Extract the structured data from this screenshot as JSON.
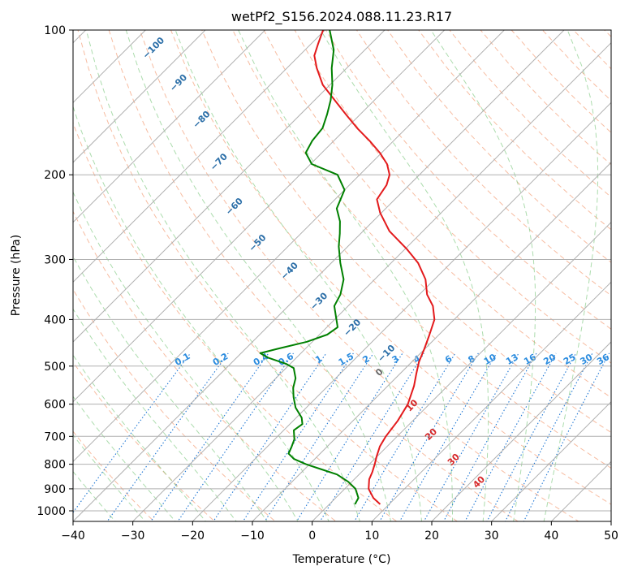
{
  "chart_data": {
    "type": "line",
    "title": "wetPf2_S156.2024.088.11.23.R17",
    "xlabel": "Temperature (°C)",
    "ylabel": "Pressure (hPa)",
    "xlim": [
      -40,
      50
    ],
    "ylim": [
      1050,
      100
    ],
    "y_scale": "log",
    "skew": "skew-T log-p diagram",
    "grid": true,
    "x_ticks": [
      "−40",
      "−30",
      "−20",
      "−10",
      "0",
      "10",
      "20",
      "30",
      "40",
      "50"
    ],
    "y_ticks": [
      "100",
      "200",
      "300",
      "400",
      "500",
      "600",
      "700",
      "800",
      "900",
      "1000"
    ],
    "series": [
      {
        "name": "",
        "color": "#e31a1c",
        "role": "temperature",
        "points": [
          [
            969,
            8.5
          ],
          [
            940,
            6.3
          ],
          [
            900,
            4.0
          ],
          [
            860,
            2.5
          ],
          [
            830,
            1.8
          ],
          [
            800,
            0.9
          ],
          [
            770,
            -0.1
          ],
          [
            735,
            -1.2
          ],
          [
            700,
            -1.9
          ],
          [
            650,
            -2.5
          ],
          [
            600,
            -3.6
          ],
          [
            550,
            -5.6
          ],
          [
            520,
            -7.2
          ],
          [
            490,
            -8.8
          ],
          [
            460,
            -10.1
          ],
          [
            430,
            -11.6
          ],
          [
            400,
            -13.3
          ],
          [
            375,
            -15.8
          ],
          [
            355,
            -18.7
          ],
          [
            330,
            -21.5
          ],
          [
            305,
            -25.5
          ],
          [
            285,
            -29.8
          ],
          [
            262,
            -35.6
          ],
          [
            240,
            -40.2
          ],
          [
            225,
            -43.0
          ],
          [
            210,
            -43.8
          ],
          [
            200,
            -45.0
          ],
          [
            190,
            -47.2
          ],
          [
            180,
            -50.3
          ],
          [
            170,
            -54.0
          ],
          [
            160,
            -58.2
          ],
          [
            150,
            -62.3
          ],
          [
            140,
            -66.6
          ],
          [
            130,
            -71.2
          ],
          [
            120,
            -75.0
          ],
          [
            113,
            -77.5
          ],
          [
            107,
            -78.8
          ],
          [
            100,
            -80.3
          ]
        ]
      },
      {
        "name": "",
        "color": "#008000",
        "role": "dewpoint",
        "points": [
          [
            969,
            4.3
          ],
          [
            940,
            3.8
          ],
          [
            900,
            1.8
          ],
          [
            870,
            -0.6
          ],
          [
            840,
            -3.7
          ],
          [
            820,
            -7.1
          ],
          [
            800,
            -10.6
          ],
          [
            780,
            -13.5
          ],
          [
            760,
            -15.3
          ],
          [
            740,
            -15.8
          ],
          [
            710,
            -16.7
          ],
          [
            680,
            -18.3
          ],
          [
            660,
            -17.9
          ],
          [
            640,
            -19.1
          ],
          [
            610,
            -21.8
          ],
          [
            580,
            -23.9
          ],
          [
            555,
            -25.5
          ],
          [
            530,
            -26.7
          ],
          [
            505,
            -28.7
          ],
          [
            495,
            -30.6
          ],
          [
            480,
            -34.8
          ],
          [
            470,
            -36.8
          ],
          [
            460,
            -34.6
          ],
          [
            445,
            -30.9
          ],
          [
            430,
            -28.7
          ],
          [
            415,
            -28.2
          ],
          [
            395,
            -30.2
          ],
          [
            375,
            -32.3
          ],
          [
            355,
            -33.2
          ],
          [
            330,
            -35.2
          ],
          [
            305,
            -38.5
          ],
          [
            282,
            -41.5
          ],
          [
            265,
            -43.5
          ],
          [
            250,
            -45.5
          ],
          [
            235,
            -48.2
          ],
          [
            215,
            -50.0
          ],
          [
            200,
            -53.7
          ],
          [
            190,
            -59.8
          ],
          [
            180,
            -62.7
          ],
          [
            170,
            -63.6
          ],
          [
            160,
            -64.0
          ],
          [
            150,
            -65.5
          ],
          [
            140,
            -67.3
          ],
          [
            130,
            -69.6
          ],
          [
            120,
            -72.5
          ],
          [
            110,
            -75.2
          ],
          [
            100,
            -79.2
          ]
        ]
      }
    ],
    "dry_adiabat_labels": [],
    "moist_adiabat_labels": [
      "−100",
      "−90",
      "−80",
      "−70",
      "−60",
      "−50",
      "−40",
      "−30",
      "−20",
      "−10",
      "0",
      "10",
      "20",
      "30",
      "40"
    ],
    "mixing_ratio_labels": [
      "0.1",
      "0.2",
      "0.4",
      "0.6",
      "1",
      "1.5",
      "2",
      "3",
      "4",
      "6",
      "8",
      "10",
      "13",
      "16",
      "20",
      "25",
      "30",
      "36"
    ]
  }
}
